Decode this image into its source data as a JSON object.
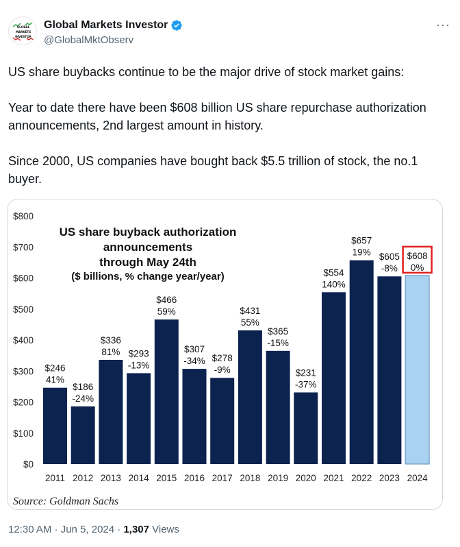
{
  "tweet": {
    "author_name": "Global Markets Investor",
    "author_handle": "@GlobalMktObserv",
    "avatar_lines": [
      "GLOBAL",
      "MARKETS",
      "INVESTOR"
    ],
    "more_label": "···",
    "paragraphs": [
      "US share buybacks continue to be the major drive of stock market gains:",
      "Year to date there have been $608 billion US share repurchase authorization announcements, 2nd largest amount in history.",
      "Since 2000, US companies have bought back $5.5 trillion of stock, the no.1 buyer."
    ],
    "timestamp": "12:30 AM · Jun 5, 2024 · ",
    "views_count": "1,307",
    "views_label": " Views"
  },
  "colors": {
    "bar": "#0c2350",
    "bar_highlight": "#a9d1f0",
    "highlight_box": "#e02020",
    "verified": "#1d9bf0"
  },
  "chart_data": {
    "type": "bar",
    "title_lines": [
      "US share buyback authorization",
      "announcements",
      "through May 24th",
      "($ billions, % change year/year)"
    ],
    "categories": [
      "2011",
      "2012",
      "2013",
      "2014",
      "2015",
      "2016",
      "2017",
      "2018",
      "2019",
      "2020",
      "2021",
      "2022",
      "2023",
      "2024"
    ],
    "values": [
      246,
      186,
      336,
      293,
      466,
      307,
      278,
      431,
      365,
      231,
      554,
      657,
      605,
      608
    ],
    "value_labels": [
      "$246",
      "$186",
      "$336",
      "$293",
      "$466",
      "$307",
      "$278",
      "$431",
      "$365",
      "$231",
      "$554",
      "$657",
      "$605",
      "$608"
    ],
    "change_labels": [
      "41%",
      "-24%",
      "81%",
      "-13%",
      "59%",
      "-34%",
      "-9%",
      "55%",
      "-15%",
      "-37%",
      "140%",
      "19%",
      "-8%",
      "0%"
    ],
    "ylim": [
      0,
      800
    ],
    "yticks": [
      "$0",
      "$100",
      "$200",
      "$300",
      "$400",
      "$500",
      "$600",
      "$700",
      "$800"
    ],
    "highlight_index": 13,
    "source": "Source: Goldman Sachs"
  }
}
